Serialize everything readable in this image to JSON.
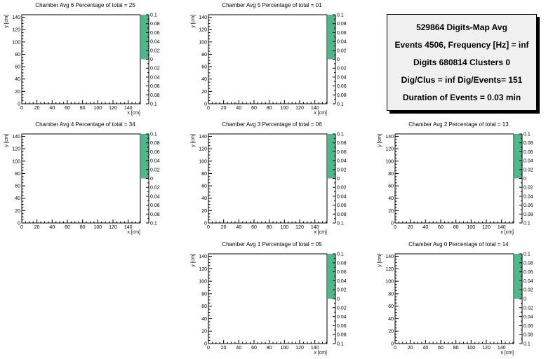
{
  "colors": {
    "palette_fill": "#4cb98b",
    "frame": "#000000",
    "info_bg": "#f0f0f0"
  },
  "info": {
    "lines": [
      "529864 Digits-Map Avg",
      "Events 4506, Frequency [Hz] = inf",
      "Digits 680814 Clusters 0",
      "Dig/Clus = inf Dig/Events= 151",
      "Duration of Events = 0.03 min"
    ]
  },
  "chart_data": [
    {
      "type": "heatmap",
      "title": "Chamber Avg 6 Percentage of total = 25",
      "xlabel": "x [cm]",
      "ylabel": "y [cm]",
      "xlim": [
        0,
        156
      ],
      "ylim": [
        0,
        144
      ],
      "xticks": [
        "0",
        "20",
        "40",
        "60",
        "80",
        "100",
        "120",
        "140"
      ],
      "yticks": [
        "0",
        "20",
        "40",
        "60",
        "80",
        "100",
        "120",
        "140"
      ],
      "zticks": [
        "0.1",
        "0.08",
        "0.06",
        "0.04",
        "0.02",
        "0",
        "0.02",
        "0.04",
        "0.06",
        "0.08",
        "0.1"
      ],
      "values": []
    },
    {
      "type": "heatmap",
      "title": "Chamber Avg 5 Percentage of total = 01",
      "xlabel": "x [cm]",
      "ylabel": "y [cm]",
      "xlim": [
        0,
        156
      ],
      "ylim": [
        0,
        144
      ],
      "xticks": [
        "0",
        "20",
        "40",
        "60",
        "80",
        "100",
        "120",
        "140"
      ],
      "yticks": [
        "0",
        "20",
        "40",
        "60",
        "80",
        "100",
        "120",
        "140"
      ],
      "zticks": [
        "0.1",
        "0.08",
        "0.06",
        "0.04",
        "0.02",
        "0",
        "0.02",
        "0.04",
        "0.06",
        "0.08",
        "0.1"
      ],
      "values": []
    },
    {
      "type": "heatmap",
      "title": "Chamber Avg 4 Percentage of total = 34",
      "xlabel": "x [cm]",
      "ylabel": "y [cm]",
      "xlim": [
        0,
        156
      ],
      "ylim": [
        0,
        144
      ],
      "xticks": [
        "0",
        "20",
        "40",
        "60",
        "80",
        "100",
        "120",
        "140"
      ],
      "yticks": [
        "0",
        "20",
        "40",
        "60",
        "80",
        "100",
        "120",
        "140"
      ],
      "zticks": [
        "0.1",
        "0.08",
        "0.06",
        "0.04",
        "0.02",
        "0",
        "0.02",
        "0.04",
        "0.06",
        "0.08",
        "0.1"
      ],
      "values": []
    },
    {
      "type": "heatmap",
      "title": "Chamber Avg 3 Percentage of total = 06",
      "xlabel": "x [cm]",
      "ylabel": "y [cm]",
      "xlim": [
        0,
        156
      ],
      "ylim": [
        0,
        144
      ],
      "xticks": [
        "0",
        "20",
        "40",
        "60",
        "80",
        "100",
        "120",
        "140"
      ],
      "yticks": [
        "0",
        "20",
        "40",
        "60",
        "80",
        "100",
        "120",
        "140"
      ],
      "zticks": [
        "0.1",
        "0.08",
        "0.06",
        "0.04",
        "0.02",
        "0",
        "0.02",
        "0.04",
        "0.06",
        "0.08",
        "0.1"
      ],
      "values": []
    },
    {
      "type": "heatmap",
      "title": "Chamber Avg 2 Percentage of total = 13",
      "xlabel": "x [cm]",
      "ylabel": "y [cm]",
      "xlim": [
        0,
        156
      ],
      "ylim": [
        0,
        144
      ],
      "xticks": [
        "0",
        "20",
        "40",
        "60",
        "80",
        "100",
        "120",
        "140"
      ],
      "yticks": [
        "0",
        "20",
        "40",
        "60",
        "80",
        "100",
        "120",
        "140"
      ],
      "zticks": [
        "0.1",
        "0.08",
        "0.06",
        "0.04",
        "0.02",
        "0",
        "0.02",
        "0.04",
        "0.06",
        "0.08",
        "0.1"
      ],
      "values": []
    },
    {
      "type": "heatmap",
      "title": "Chamber Avg 1 Percentage of total = 05",
      "xlabel": "x [cm]",
      "ylabel": "y [cm]",
      "xlim": [
        0,
        156
      ],
      "ylim": [
        0,
        144
      ],
      "xticks": [
        "0",
        "20",
        "40",
        "60",
        "80",
        "100",
        "120",
        "140"
      ],
      "yticks": [
        "0",
        "20",
        "40",
        "60",
        "80",
        "100",
        "120",
        "140"
      ],
      "zticks": [
        "0.1",
        "0.08",
        "0.06",
        "0.04",
        "0.02",
        "0",
        "0.02",
        "0.04",
        "0.06",
        "0.08",
        "0.1"
      ],
      "values": []
    },
    {
      "type": "heatmap",
      "title": "Chamber Avg 0 Percentage of total = 14",
      "xlabel": "x [cm]",
      "ylabel": "y [cm]",
      "xlim": [
        0,
        156
      ],
      "ylim": [
        0,
        144
      ],
      "xticks": [
        "0",
        "20",
        "40",
        "60",
        "80",
        "100",
        "120",
        "140"
      ],
      "yticks": [
        "0",
        "20",
        "40",
        "60",
        "80",
        "100",
        "120",
        "140"
      ],
      "zticks": [
        "0.1",
        "0.08",
        "0.06",
        "0.04",
        "0.02",
        "0",
        "0.02",
        "0.04",
        "0.06",
        "0.08",
        "0.1"
      ],
      "values": []
    }
  ]
}
